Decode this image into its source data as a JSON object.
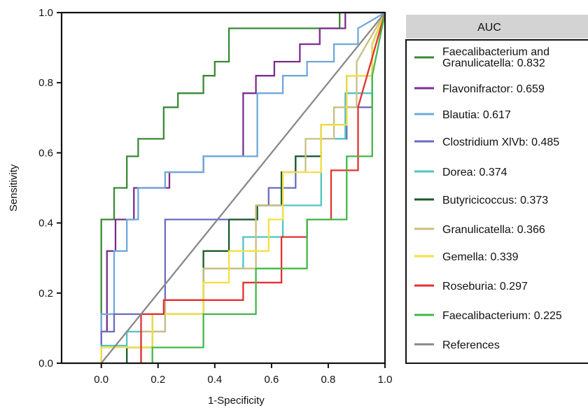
{
  "chart_data": {
    "type": "line",
    "title": "",
    "xlabel": "1-Specificity",
    "ylabel": "Sensitivity",
    "xlim": [
      -0.14,
      1.0
    ],
    "ylim": [
      0,
      1.0
    ],
    "xticks": [
      "0.0",
      "0.2",
      "0.4",
      "0.6",
      "0.8",
      "1.0"
    ],
    "yticks": [
      "0.0",
      "0.2",
      "0.4",
      "0.6",
      "0.8",
      "1.0"
    ],
    "grid": false,
    "legend": {
      "header": "AUC",
      "placement": "right"
    },
    "series": [
      {
        "name": "Faecalibacterium and Granulicatella: 0.832",
        "label_lines": [
          "Faecalibacterium and",
          "Granulicatella: 0.832"
        ],
        "color": "#3a8a35",
        "x": [
          0,
          0,
          0.045,
          0.045,
          0.09,
          0.09,
          0.13,
          0.13,
          0.22,
          0.22,
          0.27,
          0.27,
          0.36,
          0.36,
          0.4,
          0.4,
          0.45,
          0.45,
          0.84,
          0.84,
          1.0
        ],
        "y": [
          0,
          0.41,
          0.41,
          0.5,
          0.5,
          0.59,
          0.59,
          0.64,
          0.64,
          0.73,
          0.73,
          0.77,
          0.77,
          0.82,
          0.82,
          0.86,
          0.86,
          0.955,
          0.955,
          1.0,
          1.0
        ]
      },
      {
        "name": "Flavonifractor: 0.659",
        "color": "#7b2e8e",
        "x": [
          0,
          0,
          0.02,
          0.02,
          0.05,
          0.05,
          0.115,
          0.115,
          0.24,
          0.24,
          0.36,
          0.36,
          0.5,
          0.5,
          0.545,
          0.545,
          0.61,
          0.61,
          0.7,
          0.7,
          0.77,
          0.77,
          0.86,
          0.86,
          1.0
        ],
        "y": [
          0,
          0.09,
          0.09,
          0.32,
          0.32,
          0.41,
          0.41,
          0.5,
          0.5,
          0.545,
          0.545,
          0.59,
          0.59,
          0.77,
          0.77,
          0.82,
          0.82,
          0.86,
          0.86,
          0.91,
          0.91,
          0.955,
          0.955,
          1.0,
          1.0
        ]
      },
      {
        "name": "Blautia: 0.617",
        "color": "#6fa8dc",
        "x": [
          0,
          0,
          0.045,
          0.045,
          0.09,
          0.09,
          0.13,
          0.13,
          0.225,
          0.225,
          0.36,
          0.36,
          0.55,
          0.55,
          0.64,
          0.64,
          0.725,
          0.725,
          0.82,
          0.82,
          0.905,
          0.905,
          1.0
        ],
        "y": [
          0,
          0.14,
          0.14,
          0.32,
          0.32,
          0.41,
          0.41,
          0.5,
          0.5,
          0.545,
          0.545,
          0.59,
          0.59,
          0.77,
          0.77,
          0.82,
          0.82,
          0.86,
          0.86,
          0.91,
          0.91,
          0.955,
          1.0
        ]
      },
      {
        "name": "Clostridium XlVb: 0.485",
        "color": "#6a6cc0",
        "x": [
          0,
          0,
          0.045,
          0.045,
          0.225,
          0.225,
          0.545,
          0.545,
          0.59,
          0.59,
          0.685,
          0.685,
          0.775,
          0.775,
          0.865,
          0.865,
          0.955,
          0.955,
          1.0
        ],
        "y": [
          0,
          0.09,
          0.09,
          0.14,
          0.14,
          0.41,
          0.41,
          0.45,
          0.45,
          0.5,
          0.5,
          0.59,
          0.59,
          0.64,
          0.64,
          0.73,
          0.73,
          0.91,
          1.0
        ]
      },
      {
        "name": "Dorea: 0.374",
        "color": "#4fc4c4",
        "x": [
          0,
          0,
          0.09,
          0.09,
          0.225,
          0.225,
          0.36,
          0.36,
          0.5,
          0.5,
          0.64,
          0.64,
          0.775,
          0.775,
          0.86,
          0.86,
          0.955,
          0.955,
          1.0
        ],
        "y": [
          0,
          0.05,
          0.05,
          0.09,
          0.09,
          0.18,
          0.18,
          0.27,
          0.27,
          0.36,
          0.36,
          0.45,
          0.45,
          0.64,
          0.64,
          0.77,
          0.77,
          0.91,
          1.0
        ]
      },
      {
        "name": "Butyricicoccus: 0.373",
        "color": "#1a5a2a",
        "x": [
          0.09,
          0.09,
          0.18,
          0.18,
          0.36,
          0.36,
          0.45,
          0.45,
          0.55,
          0.55,
          0.635,
          0.635,
          0.685,
          0.685,
          0.775,
          0.775,
          0.865,
          0.865,
          0.955,
          0.955,
          1.0
        ],
        "y": [
          0,
          0.045,
          0.045,
          0.14,
          0.14,
          0.32,
          0.32,
          0.41,
          0.41,
          0.45,
          0.45,
          0.545,
          0.545,
          0.59,
          0.59,
          0.68,
          0.68,
          0.82,
          0.82,
          0.91,
          1.0
        ]
      },
      {
        "name": "Granulicatella: 0.366",
        "color": "#c8be82",
        "x": [
          0.14,
          0.14,
          0.225,
          0.225,
          0.36,
          0.36,
          0.545,
          0.545,
          0.64,
          0.64,
          0.72,
          0.72,
          0.82,
          0.82,
          0.9,
          0.9,
          1.0
        ],
        "y": [
          0,
          0.09,
          0.09,
          0.18,
          0.18,
          0.27,
          0.27,
          0.45,
          0.45,
          0.545,
          0.545,
          0.64,
          0.64,
          0.73,
          0.73,
          0.86,
          1.0
        ]
      },
      {
        "name": "Gemella: 0.339",
        "color": "#f5e043",
        "x": [
          0,
          0,
          0.18,
          0.18,
          0.36,
          0.36,
          0.45,
          0.45,
          0.59,
          0.59,
          0.64,
          0.64,
          0.775,
          0.775,
          0.865,
          0.865,
          0.955,
          0.955,
          1.0
        ],
        "y": [
          0,
          0.045,
          0.045,
          0.14,
          0.14,
          0.23,
          0.23,
          0.32,
          0.32,
          0.41,
          0.41,
          0.545,
          0.545,
          0.68,
          0.68,
          0.82,
          0.82,
          0.91,
          1.0
        ]
      },
      {
        "name": "Roseburia: 0.297",
        "color": "#e53030",
        "x": [
          0.14,
          0.14,
          0.22,
          0.22,
          0.5,
          0.5,
          0.635,
          0.635,
          0.725,
          0.725,
          0.81,
          0.81,
          0.905,
          0.905,
          1.0
        ],
        "y": [
          0,
          0.14,
          0.14,
          0.18,
          0.18,
          0.23,
          0.23,
          0.36,
          0.36,
          0.41,
          0.41,
          0.55,
          0.55,
          0.73,
          1.0
        ]
      },
      {
        "name": "Faecalibacterium: 0.225",
        "color": "#43b84a",
        "x": [
          0.18,
          0.18,
          0.36,
          0.36,
          0.545,
          0.545,
          0.725,
          0.725,
          0.865,
          0.865,
          0.955,
          0.955,
          1.0
        ],
        "y": [
          0,
          0.045,
          0.045,
          0.14,
          0.14,
          0.27,
          0.27,
          0.41,
          0.41,
          0.59,
          0.59,
          0.82,
          1.0
        ]
      },
      {
        "name": "References",
        "color": "#888888",
        "x": [
          0,
          1.0
        ],
        "y": [
          0,
          1.0
        ]
      }
    ]
  }
}
